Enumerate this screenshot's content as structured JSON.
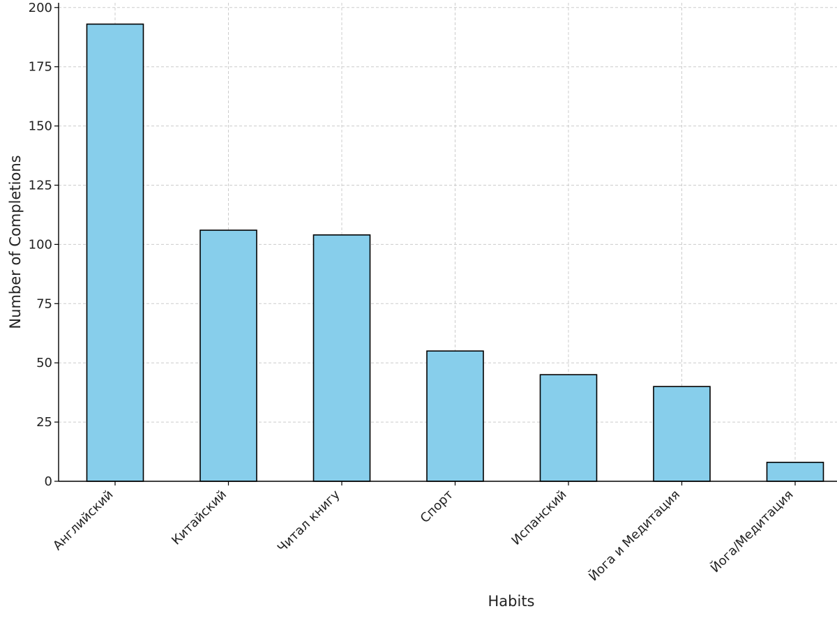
{
  "chart_data": {
    "type": "bar",
    "categories": [
      "Английский",
      "Китайский",
      "Читал книгу",
      "Спорт",
      "Испанский",
      "Йога и Медитация",
      "Йога/Медитация"
    ],
    "values": [
      193,
      106,
      104,
      55,
      45,
      40,
      8
    ],
    "title": "",
    "xlabel": "Habits",
    "ylabel": "Number of Completions",
    "ylim": [
      0,
      202
    ],
    "yticks": [
      0,
      25,
      50,
      75,
      100,
      125,
      150,
      175,
      200
    ],
    "grid": true,
    "bar_color": "#87ceeb",
    "edge_color": "#000000",
    "grid_color": "#cccccc"
  }
}
